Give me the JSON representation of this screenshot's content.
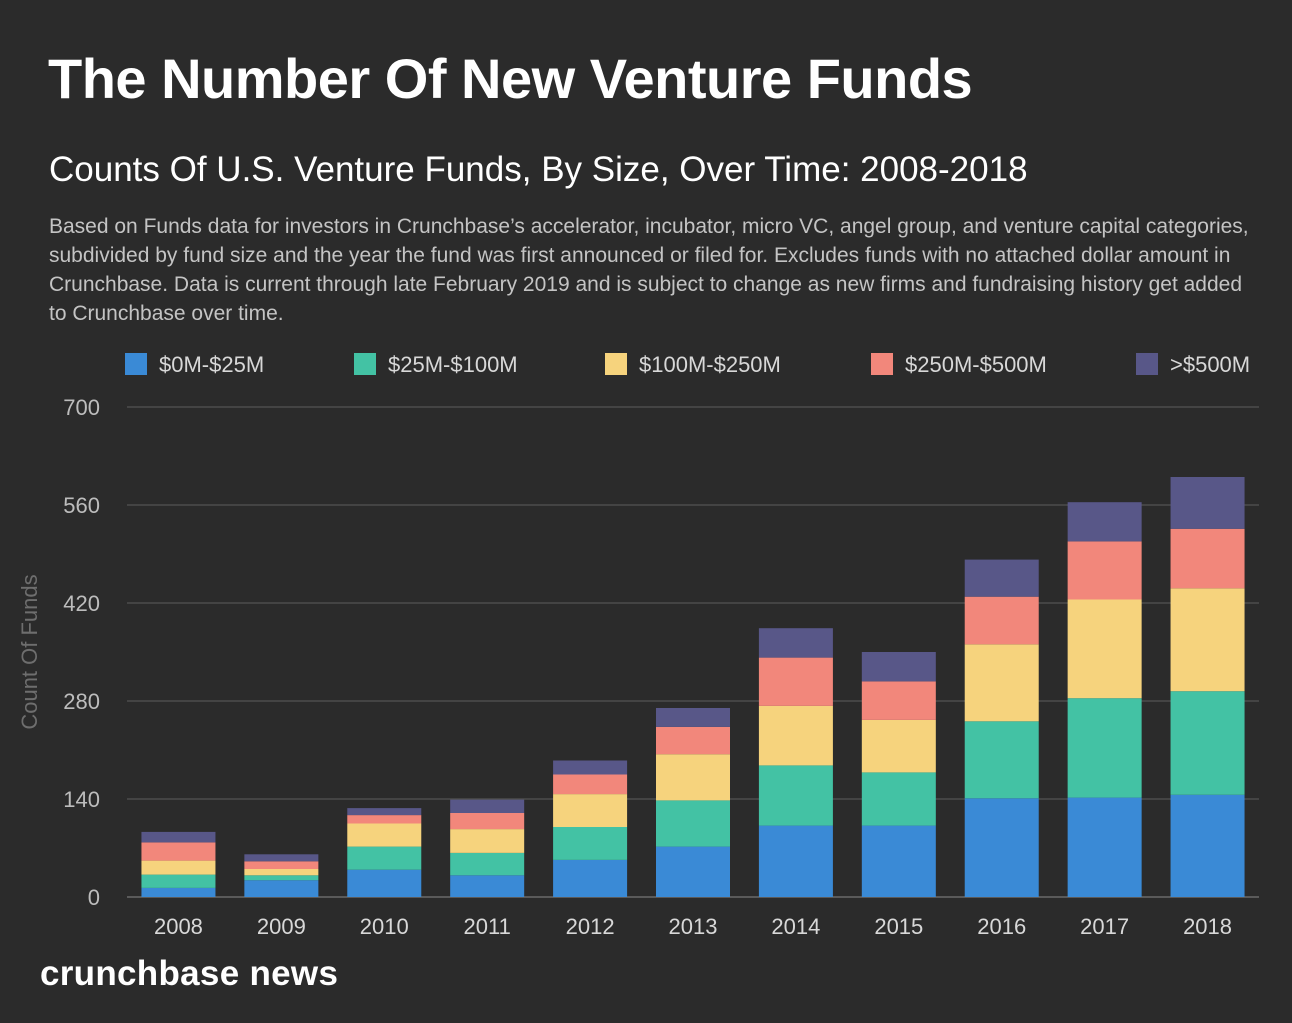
{
  "header": {
    "title": "The Number Of New Venture Funds",
    "subtitle": "Counts Of U.S. Venture Funds, By Size, Over Time: 2008-2018",
    "description": "Based on Funds data for investors in Crunchbase’s accelerator, incubator, micro VC, angel group, and venture capital categories, subdivided by fund size and the year the fund was first announced or filed for. Excludes funds with no attached dollar amount in Crunchbase. Data is current through late February 2019 and is subject to change as new firms and fundraising history get added to Crunchbase over time."
  },
  "footer": {
    "logo_text": "crunchbase news"
  },
  "chart_data": {
    "type": "bar",
    "stacked": true,
    "title": "Counts Of U.S. Venture Funds, By Size, Over Time: 2008-2018",
    "xlabel": "",
    "ylabel": "Count Of Funds",
    "ylim": [
      0,
      700
    ],
    "yticks": [
      0,
      140,
      280,
      420,
      560,
      700
    ],
    "grid": true,
    "legend_position": "top",
    "categories": [
      "2008",
      "2009",
      "2010",
      "2011",
      "2012",
      "2013",
      "2014",
      "2015",
      "2016",
      "2017",
      "2018"
    ],
    "series": [
      {
        "name": "$0M-$25M",
        "color": "#3a8ad6",
        "values": [
          13,
          24,
          39,
          31,
          53,
          72,
          102,
          102,
          141,
          142,
          146
        ]
      },
      {
        "name": "$25M-$100M",
        "color": "#43c2a4",
        "values": [
          19,
          7,
          33,
          32,
          47,
          66,
          86,
          76,
          110,
          142,
          148
        ]
      },
      {
        "name": "$100M-$250M",
        "color": "#f6d37d",
        "values": [
          20,
          9,
          33,
          34,
          47,
          66,
          85,
          75,
          110,
          141,
          147
        ]
      },
      {
        "name": "$250M-$500M",
        "color": "#f2877b",
        "values": [
          26,
          11,
          12,
          23,
          28,
          39,
          69,
          55,
          68,
          83,
          85
        ]
      },
      {
        "name": ">$500M",
        "color": "#585788",
        "values": [
          15,
          10,
          10,
          19,
          20,
          27,
          42,
          42,
          53,
          56,
          74
        ]
      }
    ]
  }
}
